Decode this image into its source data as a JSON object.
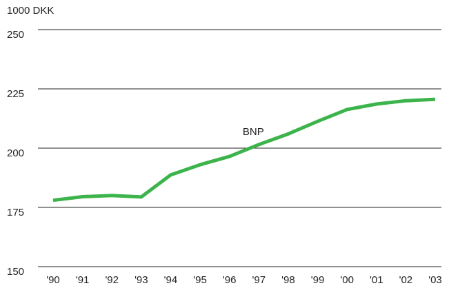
{
  "chart_data": {
    "type": "line",
    "y_axis_label": "1000 DKK",
    "categories": [
      "'90",
      "'91",
      "'92",
      "'93",
      "'94",
      "'95",
      "'96",
      "'97",
      "'98",
      "'99",
      "'00",
      "'01",
      "'02",
      "'03"
    ],
    "series": [
      {
        "name": "BNP",
        "color": "#3cb44b",
        "values": [
          178,
          179.5,
          180,
          179.4,
          188.7,
          193,
          196.5,
          201.5,
          206,
          211.3,
          216.3,
          218.6,
          220,
          220.6
        ]
      }
    ],
    "ylim": [
      150,
      250
    ],
    "yticks": [
      150,
      175,
      200,
      225,
      250
    ],
    "grid": true
  }
}
